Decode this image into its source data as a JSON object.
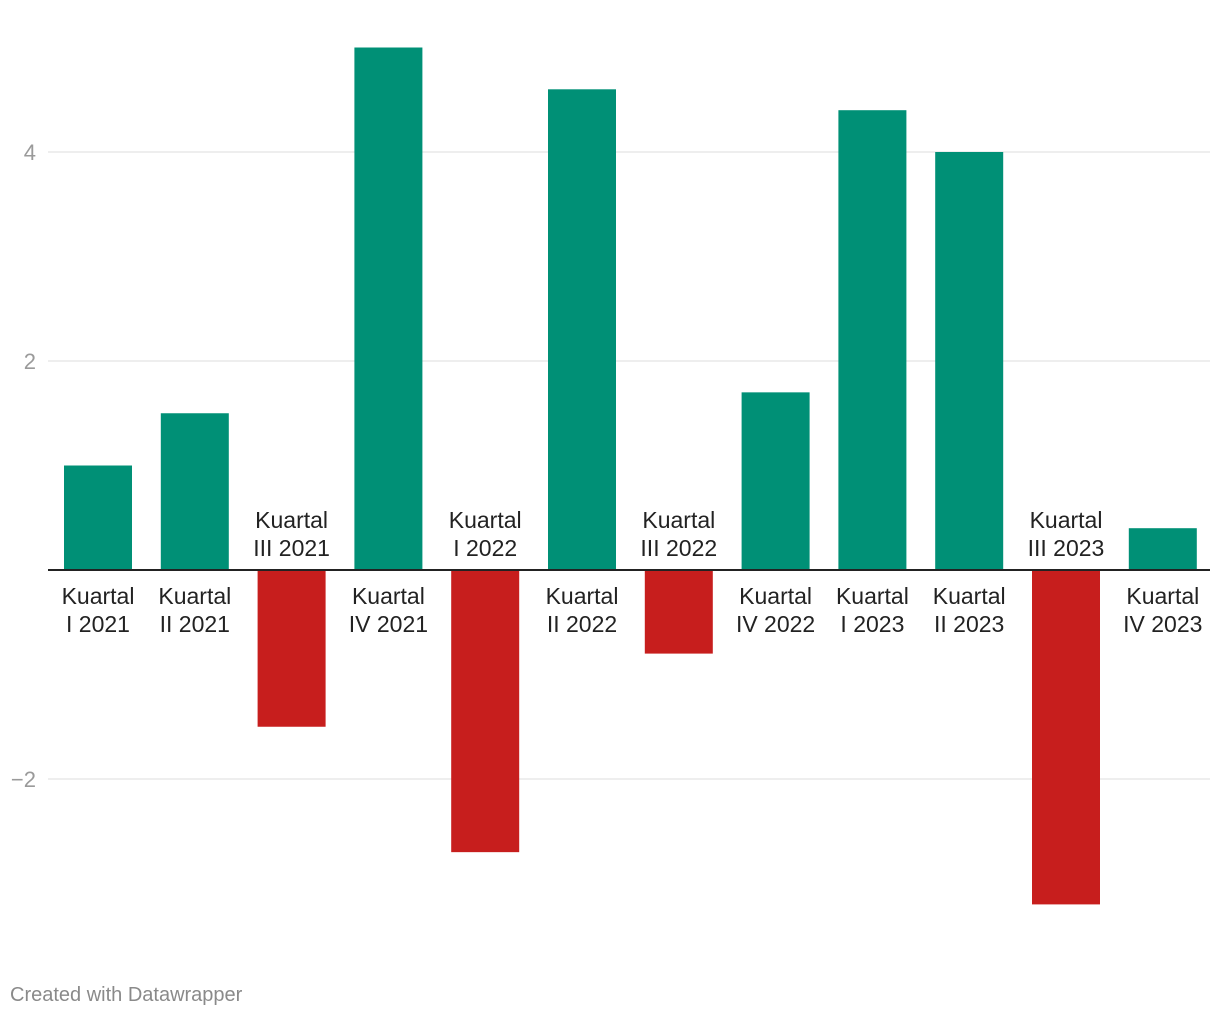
{
  "chart_data": {
    "type": "bar",
    "categories": [
      [
        "Kuartal",
        "I 2021"
      ],
      [
        "Kuartal",
        "II 2021"
      ],
      [
        "Kuartal",
        "III 2021"
      ],
      [
        "Kuartal",
        "IV 2021"
      ],
      [
        "Kuartal",
        "I 2022"
      ],
      [
        "Kuartal",
        "II 2022"
      ],
      [
        "Kuartal",
        "III 2022"
      ],
      [
        "Kuartal",
        "IV 2022"
      ],
      [
        "Kuartal",
        "I 2023"
      ],
      [
        "Kuartal",
        "II 2023"
      ],
      [
        "Kuartal",
        "III 2023"
      ],
      [
        "Kuartal",
        "IV 2023"
      ]
    ],
    "values": [
      1.0,
      1.5,
      -1.5,
      5.0,
      -2.7,
      4.6,
      -0.8,
      1.7,
      4.4,
      4.0,
      -3.2,
      0.4
    ],
    "ylim": [
      -3.5,
      5.2
    ],
    "yticks": [
      -2,
      2,
      4
    ],
    "ytick_labels": [
      "−2",
      "2",
      "4"
    ],
    "grid": true,
    "colors": {
      "positive": "#009076",
      "negative": "#c71e1d",
      "grid": "#e3e3e3",
      "baseline": "#222222"
    }
  },
  "credit": "Created with Datawrapper"
}
